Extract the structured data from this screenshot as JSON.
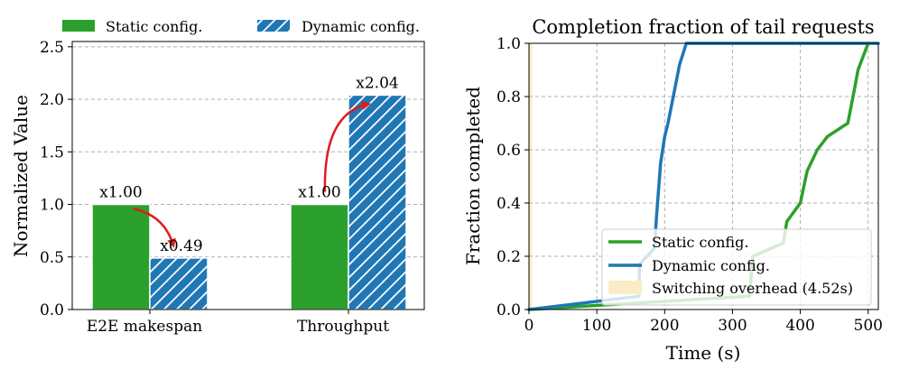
{
  "chart_data": [
    {
      "type": "bar",
      "categories": [
        "E2E makespan",
        "Throughput"
      ],
      "series": [
        {
          "name": "Static config.",
          "values": [
            1.0,
            1.0
          ],
          "color": "#2ca02c",
          "pattern": "solid"
        },
        {
          "name": "Dynamic config.",
          "values": [
            0.49,
            2.04
          ],
          "color": "#1f77b4",
          "pattern": "hatched"
        }
      ],
      "data_labels": {
        "static": [
          "x1.00",
          "x1.00"
        ],
        "dynamic": [
          "x0.49",
          "x2.04"
        ]
      },
      "ylabel": "Normalized Value",
      "ylim": [
        0,
        2.55
      ],
      "yticks": [
        "0.0",
        "0.5",
        "1.0",
        "1.5",
        "2.0",
        "2.5"
      ],
      "grid": true,
      "legend_position": "top"
    },
    {
      "type": "line",
      "title": "Completion fraction of tail requests",
      "xlabel": "Time (s)",
      "ylabel": "Fraction completed",
      "xlim": [
        0,
        515
      ],
      "ylim": [
        0,
        1.0
      ],
      "xticks": [
        "0",
        "100",
        "200",
        "300",
        "400",
        "500"
      ],
      "yticks": [
        "0.0",
        "0.2",
        "0.4",
        "0.6",
        "0.8",
        "1.0"
      ],
      "grid": true,
      "legend_position": "bottom-right",
      "series": [
        {
          "name": "Static config.",
          "color": "#2ca02c",
          "x": [
            0,
            325,
            330,
            375,
            380,
            400,
            410,
            425,
            440,
            470,
            480,
            485,
            500
          ],
          "y": [
            0,
            0.05,
            0.2,
            0.25,
            0.33,
            0.4,
            0.52,
            0.6,
            0.65,
            0.7,
            0.83,
            0.9,
            1.0
          ]
        },
        {
          "name": "Dynamic config.",
          "color": "#1f77b4",
          "x": [
            0,
            162,
            163,
            185,
            188,
            194,
            200,
            205,
            215,
            222,
            232,
            515
          ],
          "y": [
            0,
            0.05,
            0.17,
            0.23,
            0.35,
            0.55,
            0.65,
            0.7,
            0.83,
            0.92,
            1.0,
            1.0
          ]
        }
      ],
      "shaded_region": {
        "name": "Switching overhead (4.52s)",
        "x": [
          0,
          4.52
        ],
        "color": "#fbecc7"
      }
    }
  ]
}
